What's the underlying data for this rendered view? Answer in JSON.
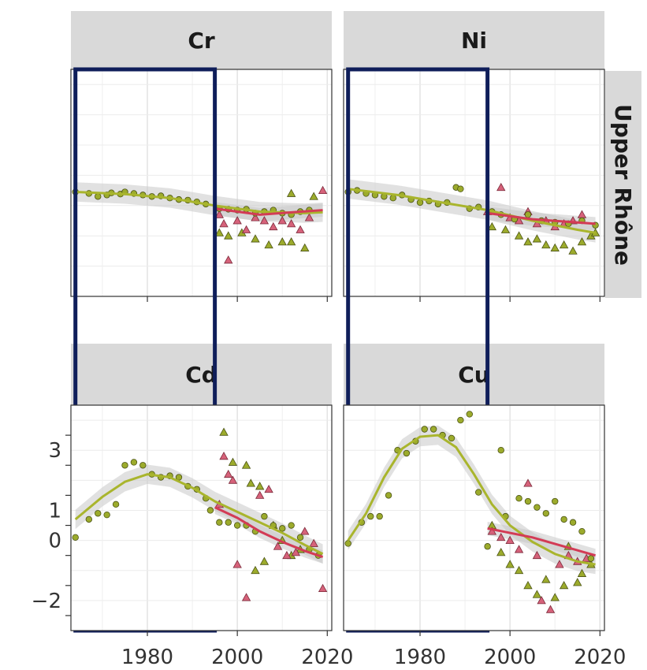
{
  "chart_data": {
    "type": "scatter",
    "title": "",
    "xlabel": "",
    "ylabel": "",
    "xlim": [
      1963,
      2021
    ],
    "ylim": [
      -3,
      4.5
    ],
    "x_ticks": [
      1980,
      2000,
      2020
    ],
    "y_ticks": [
      -2,
      0,
      1,
      3
    ],
    "x_tick_labels": [
      "1980",
      "2000",
      "2020"
    ],
    "y_tick_labels": [
      "−2",
      "0",
      "1",
      "3"
    ],
    "row_labels": [
      "Upper Rhône"
    ],
    "colors": {
      "green": "#9cab2c",
      "red": "#d6627a",
      "trend_green": "#a9b52d",
      "trend_red": "#d33b55",
      "band": "#c8c8c8",
      "box": "#0f1e5a"
    },
    "highlight_box_x": [
      1964,
      1995
    ],
    "panels": [
      {
        "name": "Cr",
        "circles": [
          [
            1964,
            0.45
          ],
          [
            1967,
            0.4
          ],
          [
            1969,
            0.3
          ],
          [
            1971,
            0.35
          ],
          [
            1972,
            0.42
          ],
          [
            1974,
            0.38
          ],
          [
            1975,
            0.45
          ],
          [
            1977,
            0.4
          ],
          [
            1979,
            0.35
          ],
          [
            1981,
            0.3
          ],
          [
            1983,
            0.32
          ],
          [
            1985,
            0.25
          ],
          [
            1987,
            0.2
          ],
          [
            1989,
            0.18
          ],
          [
            1991,
            0.12
          ],
          [
            1993,
            0.05
          ],
          [
            1996,
            -0.1
          ],
          [
            1998,
            -0.12
          ],
          [
            2000,
            -0.15
          ],
          [
            2002,
            -0.12
          ],
          [
            2004,
            -0.25
          ],
          [
            2006,
            -0.2
          ],
          [
            2008,
            -0.15
          ],
          [
            2010,
            -0.25
          ],
          [
            2012,
            -0.3
          ],
          [
            2014,
            -0.2
          ],
          [
            2016,
            -0.15
          ]
        ],
        "triangles_green": [
          [
            1996,
            -0.9
          ],
          [
            1998,
            -1.0
          ],
          [
            2001,
            -0.9
          ],
          [
            2004,
            -1.1
          ],
          [
            2007,
            -1.3
          ],
          [
            2010,
            -1.2
          ],
          [
            2012,
            -1.2
          ],
          [
            2015,
            -1.4
          ],
          [
            2012,
            0.4
          ],
          [
            2017,
            0.3
          ]
        ],
        "triangles_red": [
          [
            1996,
            -0.3
          ],
          [
            1997,
            -0.6
          ],
          [
            1998,
            -1.8
          ],
          [
            2000,
            -0.5
          ],
          [
            2002,
            -0.8
          ],
          [
            2004,
            -0.4
          ],
          [
            2006,
            -0.5
          ],
          [
            2008,
            -0.7
          ],
          [
            2010,
            -0.5
          ],
          [
            2012,
            -0.6
          ],
          [
            2014,
            -0.8
          ],
          [
            2016,
            -0.4
          ],
          [
            2019,
            0.5
          ]
        ],
        "trend_green": [
          [
            1964,
            0.45
          ],
          [
            1975,
            0.38
          ],
          [
            1985,
            0.25
          ],
          [
            1995,
            0.0
          ],
          [
            2005,
            -0.2
          ],
          [
            2015,
            -0.25
          ],
          [
            2019,
            -0.22
          ]
        ],
        "trend_red": [
          [
            1995,
            -0.1
          ],
          [
            2005,
            -0.3
          ],
          [
            2019,
            -0.15
          ]
        ]
      },
      {
        "name": "Ni",
        "circles": [
          [
            1964,
            0.45
          ],
          [
            1966,
            0.5
          ],
          [
            1968,
            0.4
          ],
          [
            1970,
            0.35
          ],
          [
            1972,
            0.3
          ],
          [
            1974,
            0.25
          ],
          [
            1976,
            0.35
          ],
          [
            1978,
            0.2
          ],
          [
            1980,
            0.1
          ],
          [
            1982,
            0.15
          ],
          [
            1984,
            0.05
          ],
          [
            1986,
            0.1
          ],
          [
            1988,
            0.6
          ],
          [
            1989,
            0.55
          ],
          [
            1991,
            -0.1
          ],
          [
            1993,
            -0.05
          ],
          [
            1996,
            -0.2
          ],
          [
            1998,
            -0.3
          ],
          [
            2001,
            -0.45
          ],
          [
            2004,
            -0.3
          ],
          [
            2007,
            -0.5
          ],
          [
            2010,
            -0.55
          ],
          [
            2013,
            -0.6
          ],
          [
            2016,
            -0.5
          ],
          [
            2019,
            -0.65
          ]
        ],
        "triangles_green": [
          [
            1996,
            -0.7
          ],
          [
            1999,
            -0.8
          ],
          [
            2002,
            -1.0
          ],
          [
            2004,
            -1.2
          ],
          [
            2006,
            -1.1
          ],
          [
            2008,
            -1.3
          ],
          [
            2010,
            -1.4
          ],
          [
            2012,
            -1.3
          ],
          [
            2014,
            -1.5
          ],
          [
            2016,
            -1.2
          ],
          [
            2018,
            -1.0
          ],
          [
            2019,
            -0.9
          ]
        ],
        "triangles_red": [
          [
            1995,
            -0.2
          ],
          [
            1998,
            0.6
          ],
          [
            2000,
            -0.4
          ],
          [
            2002,
            -0.5
          ],
          [
            2004,
            -0.2
          ],
          [
            2006,
            -0.6
          ],
          [
            2008,
            -0.5
          ],
          [
            2010,
            -0.7
          ],
          [
            2012,
            -0.6
          ],
          [
            2014,
            -0.5
          ],
          [
            2016,
            -0.3
          ]
        ],
        "trend_green": [
          [
            1964,
            0.55
          ],
          [
            1975,
            0.35
          ],
          [
            1985,
            0.1
          ],
          [
            1995,
            -0.15
          ],
          [
            2005,
            -0.5
          ],
          [
            2015,
            -0.8
          ],
          [
            2019,
            -0.9
          ]
        ],
        "trend_red": [
          [
            1995,
            -0.25
          ],
          [
            2005,
            -0.45
          ],
          [
            2019,
            -0.6
          ]
        ]
      },
      {
        "name": "Cd",
        "circles": [
          [
            1964,
            0.1
          ],
          [
            1967,
            0.7
          ],
          [
            1969,
            0.9
          ],
          [
            1971,
            0.85
          ],
          [
            1973,
            1.2
          ],
          [
            1975,
            2.5
          ],
          [
            1977,
            2.6
          ],
          [
            1979,
            2.5
          ],
          [
            1981,
            2.2
          ],
          [
            1983,
            2.1
          ],
          [
            1985,
            2.15
          ],
          [
            1987,
            2.1
          ],
          [
            1989,
            1.8
          ],
          [
            1991,
            1.7
          ],
          [
            1993,
            1.4
          ],
          [
            1994,
            1.0
          ],
          [
            1996,
            0.6
          ],
          [
            1998,
            0.6
          ],
          [
            2000,
            0.5
          ],
          [
            2002,
            0.5
          ],
          [
            2004,
            0.3
          ],
          [
            2006,
            0.8
          ],
          [
            2008,
            0.5
          ],
          [
            2010,
            0.4
          ],
          [
            2012,
            0.5
          ],
          [
            2014,
            0.1
          ],
          [
            2016,
            -0.3
          ],
          [
            2018,
            -0.5
          ]
        ],
        "triangles_green": [
          [
            1997,
            3.6
          ],
          [
            1999,
            2.6
          ],
          [
            2002,
            2.5
          ],
          [
            2003,
            1.9
          ],
          [
            2005,
            1.8
          ],
          [
            2006,
            -0.7
          ],
          [
            2004,
            -1.0
          ],
          [
            2008,
            0.5
          ],
          [
            2010,
            0.0
          ],
          [
            2012,
            -0.5
          ],
          [
            2014,
            -0.3
          ]
        ],
        "triangles_red": [
          [
            1996,
            1.2
          ],
          [
            1997,
            2.8
          ],
          [
            1998,
            2.2
          ],
          [
            1999,
            2.0
          ],
          [
            2000,
            -0.8
          ],
          [
            2002,
            -1.9
          ],
          [
            2005,
            1.5
          ],
          [
            2007,
            1.7
          ],
          [
            2009,
            -0.2
          ],
          [
            2011,
            -0.5
          ],
          [
            2013,
            -0.4
          ],
          [
            2015,
            0.3
          ],
          [
            2017,
            -0.1
          ],
          [
            2019,
            -1.6
          ]
        ],
        "trend_green": [
          [
            1964,
            0.7
          ],
          [
            1970,
            1.45
          ],
          [
            1975,
            1.95
          ],
          [
            1980,
            2.2
          ],
          [
            1985,
            2.1
          ],
          [
            1990,
            1.75
          ],
          [
            1995,
            1.3
          ],
          [
            2000,
            0.95
          ],
          [
            2005,
            0.6
          ],
          [
            2010,
            0.25
          ],
          [
            2015,
            -0.15
          ],
          [
            2019,
            -0.45
          ]
        ],
        "trend_red": [
          [
            1995,
            1.1
          ],
          [
            2000,
            0.75
          ],
          [
            2005,
            0.3
          ],
          [
            2010,
            -0.05
          ],
          [
            2015,
            -0.35
          ],
          [
            2019,
            -0.55
          ]
        ]
      },
      {
        "name": "Cu",
        "circles": [
          [
            1964,
            -0.1
          ],
          [
            1967,
            0.6
          ],
          [
            1969,
            0.8
          ],
          [
            1971,
            0.8
          ],
          [
            1973,
            1.5
          ],
          [
            1975,
            3.0
          ],
          [
            1977,
            2.9
          ],
          [
            1979,
            3.3
          ],
          [
            1981,
            3.7
          ],
          [
            1983,
            3.7
          ],
          [
            1985,
            3.5
          ],
          [
            1987,
            3.4
          ],
          [
            1989,
            4.0
          ],
          [
            1991,
            4.2
          ],
          [
            1993,
            1.6
          ],
          [
            1995,
            -0.2
          ],
          [
            1998,
            3.0
          ],
          [
            1999,
            0.8
          ],
          [
            2002,
            1.4
          ],
          [
            2004,
            1.3
          ],
          [
            2006,
            1.1
          ],
          [
            2008,
            0.9
          ],
          [
            2010,
            1.3
          ],
          [
            2012,
            0.7
          ],
          [
            2014,
            0.6
          ],
          [
            2016,
            0.3
          ],
          [
            2018,
            -0.6
          ]
        ],
        "triangles_green": [
          [
            1996,
            0.5
          ],
          [
            1998,
            -0.4
          ],
          [
            2000,
            -0.8
          ],
          [
            2002,
            -1.0
          ],
          [
            2004,
            -1.5
          ],
          [
            2006,
            -1.8
          ],
          [
            2008,
            -1.3
          ],
          [
            2010,
            -1.9
          ],
          [
            2012,
            -1.5
          ],
          [
            2013,
            -0.2
          ],
          [
            2015,
            -1.4
          ],
          [
            2016,
            -1.1
          ],
          [
            2018,
            -0.8
          ]
        ],
        "triangles_red": [
          [
            1996,
            0.3
          ],
          [
            1998,
            0.1
          ],
          [
            2000,
            0.0
          ],
          [
            2002,
            -0.3
          ],
          [
            2004,
            1.9
          ],
          [
            2006,
            -0.5
          ],
          [
            2007,
            -2.0
          ],
          [
            2009,
            -2.3
          ],
          [
            2011,
            -0.8
          ],
          [
            2013,
            -0.5
          ],
          [
            2015,
            -0.7
          ],
          [
            2017,
            -0.6
          ]
        ],
        "trend_green": [
          [
            1964,
            0.0
          ],
          [
            1968,
            0.9
          ],
          [
            1972,
            2.1
          ],
          [
            1976,
            3.05
          ],
          [
            1980,
            3.45
          ],
          [
            1984,
            3.5
          ],
          [
            1988,
            3.1
          ],
          [
            1992,
            2.2
          ],
          [
            1996,
            1.2
          ],
          [
            2000,
            0.5
          ],
          [
            2005,
            -0.05
          ],
          [
            2010,
            -0.45
          ],
          [
            2015,
            -0.7
          ],
          [
            2019,
            -0.8
          ]
        ],
        "trend_red": [
          [
            1995,
            0.4
          ],
          [
            2005,
            0.1
          ],
          [
            2019,
            -0.5
          ]
        ]
      }
    ]
  }
}
